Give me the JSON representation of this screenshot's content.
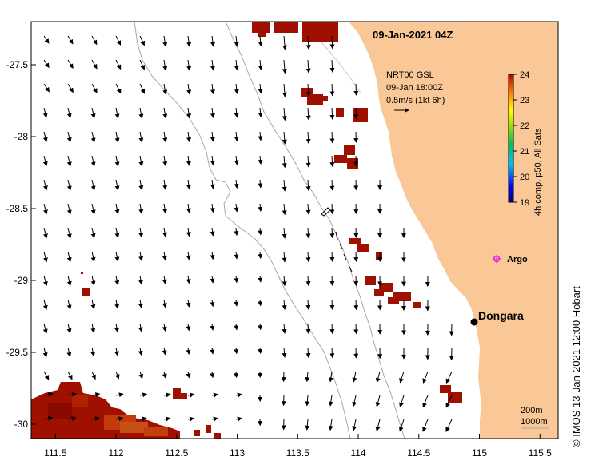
{
  "map": {
    "title": "09-Jan-2021 04Z",
    "x_ticks": [
      "111.5",
      "112",
      "112.5",
      "113",
      "113.5",
      "114",
      "114.5",
      "115",
      "115.5"
    ],
    "y_ticks": [
      "-27.5",
      "-28",
      "-28.5",
      "-29",
      "-29.5",
      "-30"
    ],
    "x_range": [
      111.3,
      115.65
    ],
    "y_range": [
      -30.1,
      -27.2
    ],
    "land_color": "#f9c896",
    "sea_color": "#ffffff"
  },
  "legend": {
    "source": "NRT00 GSL",
    "time": "09-Jan 18:00Z",
    "scale": "0.5m/s (1kt 6h)"
  },
  "colorbar": {
    "title": "4h comp, p50, All Sats",
    "ticks": [
      "24",
      "23",
      "22",
      "21",
      "20",
      "19"
    ],
    "range": [
      19,
      24
    ]
  },
  "places": {
    "dongara": "Dongara",
    "argo": "Argo"
  },
  "isobaths": {
    "a": "200m",
    "b": "1000m"
  },
  "credit": "IMOS 13-Jan-2021 12:00 Hobart",
  "copyright_symbol": "©"
}
